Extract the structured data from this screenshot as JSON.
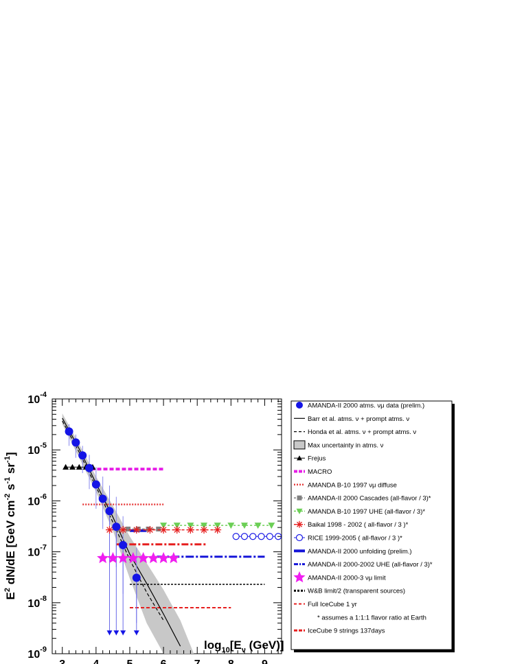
{
  "chart_data": {
    "type": "scatter",
    "xlabel": "log10[Eν (GeV)]",
    "xlabel_parts": {
      "main": "log",
      "sub": "10",
      "rest1": "[E",
      "nu": "ν",
      "rest2": " (GeV)]"
    },
    "ylabel": "E² dN/dE [GeV cm⁻² s⁻¹ sr⁻¹]",
    "xlim": [
      2.7,
      9.5
    ],
    "ylim": [
      1e-09,
      0.0001
    ],
    "yscale": "log",
    "x_ticks": [
      3,
      4,
      5,
      6,
      7,
      8,
      9
    ],
    "y_ticks": [
      {
        "value": 1e-09,
        "mant": "10",
        "exp": "-9"
      },
      {
        "value": 1e-08,
        "mant": "10",
        "exp": "-8"
      },
      {
        "value": 1e-07,
        "mant": "10",
        "exp": "-7"
      },
      {
        "value": 1e-06,
        "mant": "10",
        "exp": "-6"
      },
      {
        "value": 1e-05,
        "mant": "10",
        "exp": "-5"
      },
      {
        "value": 0.0001,
        "mant": "10",
        "exp": "-4"
      }
    ],
    "legend_position": "right",
    "legend": [
      {
        "key": "amanda2000",
        "label": "AMANDA-II 2000 atms. νμ data (prelim.)"
      },
      {
        "key": "barr",
        "label": "Barr et al. atms. ν + prompt atms. ν"
      },
      {
        "key": "honda",
        "label": "Honda et al. atms. ν + prompt atms. ν"
      },
      {
        "key": "maxunc",
        "label": "Max uncertainty in atms. ν"
      },
      {
        "key": "frejus",
        "label": "Frejus"
      },
      {
        "key": "macro",
        "label": "MACRO"
      },
      {
        "key": "b10diffuse",
        "label": "AMANDA B-10 1997 νμ diffuse"
      },
      {
        "key": "cascades",
        "label": "AMANDA-II 2000 Cascades (all-flavor / 3)*"
      },
      {
        "key": "b10uhe",
        "label": "AMANDA B-10 1997 UHE (all-flavor / 3)*"
      },
      {
        "key": "baikal",
        "label": "Baikal 1998 - 2002 ( all-flavor / 3 )*"
      },
      {
        "key": "rice",
        "label": "RICE 1999-2005 ( all-flavor / 3 )*"
      },
      {
        "key": "unfolding",
        "label": "AMANDA-II 2000 unfolding (prelim.)"
      },
      {
        "key": "a2uhe",
        "label": "AMANDA-II 2000-2002 UHE  (all-flavor / 3)*"
      },
      {
        "key": "a2limit",
        "label": "AMANDA-II 2000-3 νμ limit"
      },
      {
        "key": "wb",
        "label": "W&B limit/2 (transparent sources)"
      },
      {
        "key": "icecube",
        "label": "Full IceCube 1 yr"
      },
      {
        "key": "note",
        "label": "* assumes a 1:1:1 flavor ratio at Earth"
      },
      {
        "key": "ic9",
        "label": "IceCube 9 strings 137days"
      }
    ],
    "colors": {
      "amanda2000": "#1414e6",
      "frejus": "#000000",
      "macro": "#e61ee6",
      "b10diffuse": "#e63c3c",
      "cascades": "#808080",
      "b10uhe": "#6ccf56",
      "baikal": "#e61e1e",
      "rice": "#1a1ae6",
      "unfolding": "#1414d8",
      "a2uhe": "#1414d8",
      "a2limit": "#f01ef0",
      "wb": "#000000",
      "icecube": "#e61e1e",
      "ic9": "#e61e1e",
      "band": "#c8c8c8"
    },
    "series": [
      {
        "name": "AMANDA-II 2000 atms. νμ data (prelim.)",
        "key": "amanda2000",
        "x": [
          3.2,
          3.4,
          3.6,
          3.8,
          4.0,
          4.2,
          4.4,
          4.6,
          4.8,
          5.2
        ],
        "y": [
          2.3e-05,
          1.4e-05,
          7.8e-06,
          4.4e-06,
          2.1e-06,
          1.1e-06,
          6.3e-07,
          3.1e-07,
          1.35e-07,
          3.1e-08
        ],
        "y_err_high": [
          3.2e-05,
          2e-05,
          1.2e-05,
          8e-06,
          4.6e-06,
          3e-06,
          2e-06,
          1.2e-06,
          5e-07,
          1.2e-07
        ],
        "y_err_low": [
          1.2e-05,
          7e-06,
          3.5e-06,
          1.7e-06,
          7e-07,
          2.8e-07,
          1.2e-07,
          5e-08,
          1.5e-08,
          4e-09
        ]
      },
      {
        "name": "AMANDA-II upper limits",
        "key": "amanda2000_ul",
        "x": [
          4.4,
          4.6,
          4.8,
          5.2
        ],
        "y": [
          6.3e-07,
          3.1e-07,
          1.35e-07,
          3.1e-08
        ],
        "arrow_to": 2.3e-09
      },
      {
        "name": "Barr et al. atms. ν + prompt atms. ν",
        "key": "barr",
        "x": [
          3.0,
          3.5,
          4.0,
          4.5,
          5.0,
          5.5,
          6.0,
          6.5
        ],
        "y": [
          4.2e-05,
          1.05e-05,
          2.2e-06,
          4.8e-07,
          9e-08,
          2.4e-08,
          6e-09,
          1.4e-09
        ]
      },
      {
        "name": "Honda et al. atms. ν + prompt atms. ν",
        "key": "honda",
        "x": [
          3.0,
          3.5,
          4.0,
          4.5,
          5.0,
          5.5,
          6.0
        ],
        "y": [
          3.7e-05,
          9e-06,
          1.9e-06,
          3.8e-07,
          7e-08,
          1.6e-08,
          4.5e-09
        ]
      },
      {
        "name": "Max uncertainty in atms. ν",
        "key": "maxunc",
        "x": [
          3.0,
          3.5,
          4.0,
          4.5,
          5.0,
          5.5,
          6.0,
          6.5,
          6.9
        ],
        "y_high": [
          5.2e-05,
          1.3e-05,
          3e-06,
          8e-07,
          2e-07,
          6e-08,
          1.8e-08,
          4.5e-09,
          1e-09
        ],
        "y_low": [
          3.2e-05,
          7e-06,
          1.5e-06,
          2.6e-07,
          3e-08,
          4e-09,
          1e-09,
          1e-09,
          1e-09
        ]
      },
      {
        "name": "Frejus",
        "key": "frejus",
        "x": [
          3.1,
          3.3,
          3.5,
          3.7,
          3.9
        ],
        "y": [
          4.6e-06,
          4.6e-06,
          4.6e-06,
          4.6e-06,
          4.6e-06
        ]
      },
      {
        "name": "MACRO",
        "key": "macro",
        "x": [
          3.85,
          6.0
        ],
        "y": [
          4.2e-06,
          4.2e-06
        ]
      },
      {
        "name": "AMANDA B-10 1997 νμ diffuse",
        "key": "b10diffuse",
        "x": [
          3.6,
          6.0
        ],
        "y": [
          8.5e-07,
          8.5e-07
        ]
      },
      {
        "name": "AMANDA-II 2000 Cascades (all-flavor / 3)*",
        "key": "cascades",
        "x": [
          4.65,
          4.95,
          5.25,
          5.55,
          5.85
        ],
        "y": [
          2.8e-07,
          2.8e-07,
          2.8e-07,
          2.8e-07,
          2.8e-07
        ]
      },
      {
        "name": "AMANDA B-10 1997 UHE (all-flavor / 3)*",
        "key": "b10uhe",
        "x": [
          6.0,
          6.4,
          6.8,
          7.2,
          7.6,
          8.0,
          8.4,
          8.8,
          9.2
        ],
        "y": [
          3.3e-07,
          3.3e-07,
          3.3e-07,
          3.3e-07,
          3.3e-07,
          3.3e-07,
          3.3e-07,
          3.3e-07,
          3.3e-07
        ]
      },
      {
        "name": "Baikal 1998 - 2002 ( all-flavor / 3 )*",
        "key": "baikal",
        "x": [
          4.4,
          4.8,
          5.2,
          5.6,
          6.0,
          6.4,
          6.8,
          7.2,
          7.6
        ],
        "y": [
          2.7e-07,
          2.7e-07,
          2.7e-07,
          2.7e-07,
          2.7e-07,
          2.7e-07,
          2.7e-07,
          2.7e-07,
          2.7e-07
        ]
      },
      {
        "name": "Baikal dash-dot",
        "key": "baikal_line",
        "x": [
          4.6,
          7.3
        ],
        "y": [
          1.4e-07,
          1.4e-07
        ]
      },
      {
        "name": "RICE 1999-2005 ( all-flavor / 3 )*",
        "key": "rice",
        "x": [
          8.15,
          8.4,
          8.65,
          8.9,
          9.15,
          9.4
        ],
        "y": [
          2e-07,
          2e-07,
          2e-07,
          2e-07,
          2e-07,
          2e-07
        ]
      },
      {
        "name": "AMANDA-II 2000 unfolding (prelim.)",
        "key": "unfolding",
        "x": [
          5.0,
          5.5
        ],
        "y": [
          2.6e-07,
          2.6e-07
        ]
      },
      {
        "name": "AMANDA-II 2000-2002 UHE  (all-flavor / 3)*",
        "key": "a2uhe",
        "x": [
          5.8,
          9.0
        ],
        "y": [
          8e-08,
          8e-08
        ]
      },
      {
        "name": "AMANDA-II 2000-3 νμ limit",
        "key": "a2limit",
        "x": [
          4.2,
          4.5,
          4.8,
          5.1,
          5.4,
          5.7,
          6.0,
          6.3
        ],
        "y": [
          7.5e-08,
          7.5e-08,
          7.5e-08,
          7.5e-08,
          7.5e-08,
          7.5e-08,
          7.5e-08,
          7.5e-08
        ]
      },
      {
        "name": "W&B limit/2 (transparent sources)",
        "key": "wb",
        "x": [
          5.0,
          7.0,
          9.0
        ],
        "y": [
          2.3e-08,
          2.3e-08,
          2.3e-08
        ]
      },
      {
        "name": "Full IceCube 1 yr",
        "key": "icecube",
        "x": [
          5.0,
          8.0
        ],
        "y": [
          8e-09,
          8e-09
        ]
      }
    ]
  }
}
